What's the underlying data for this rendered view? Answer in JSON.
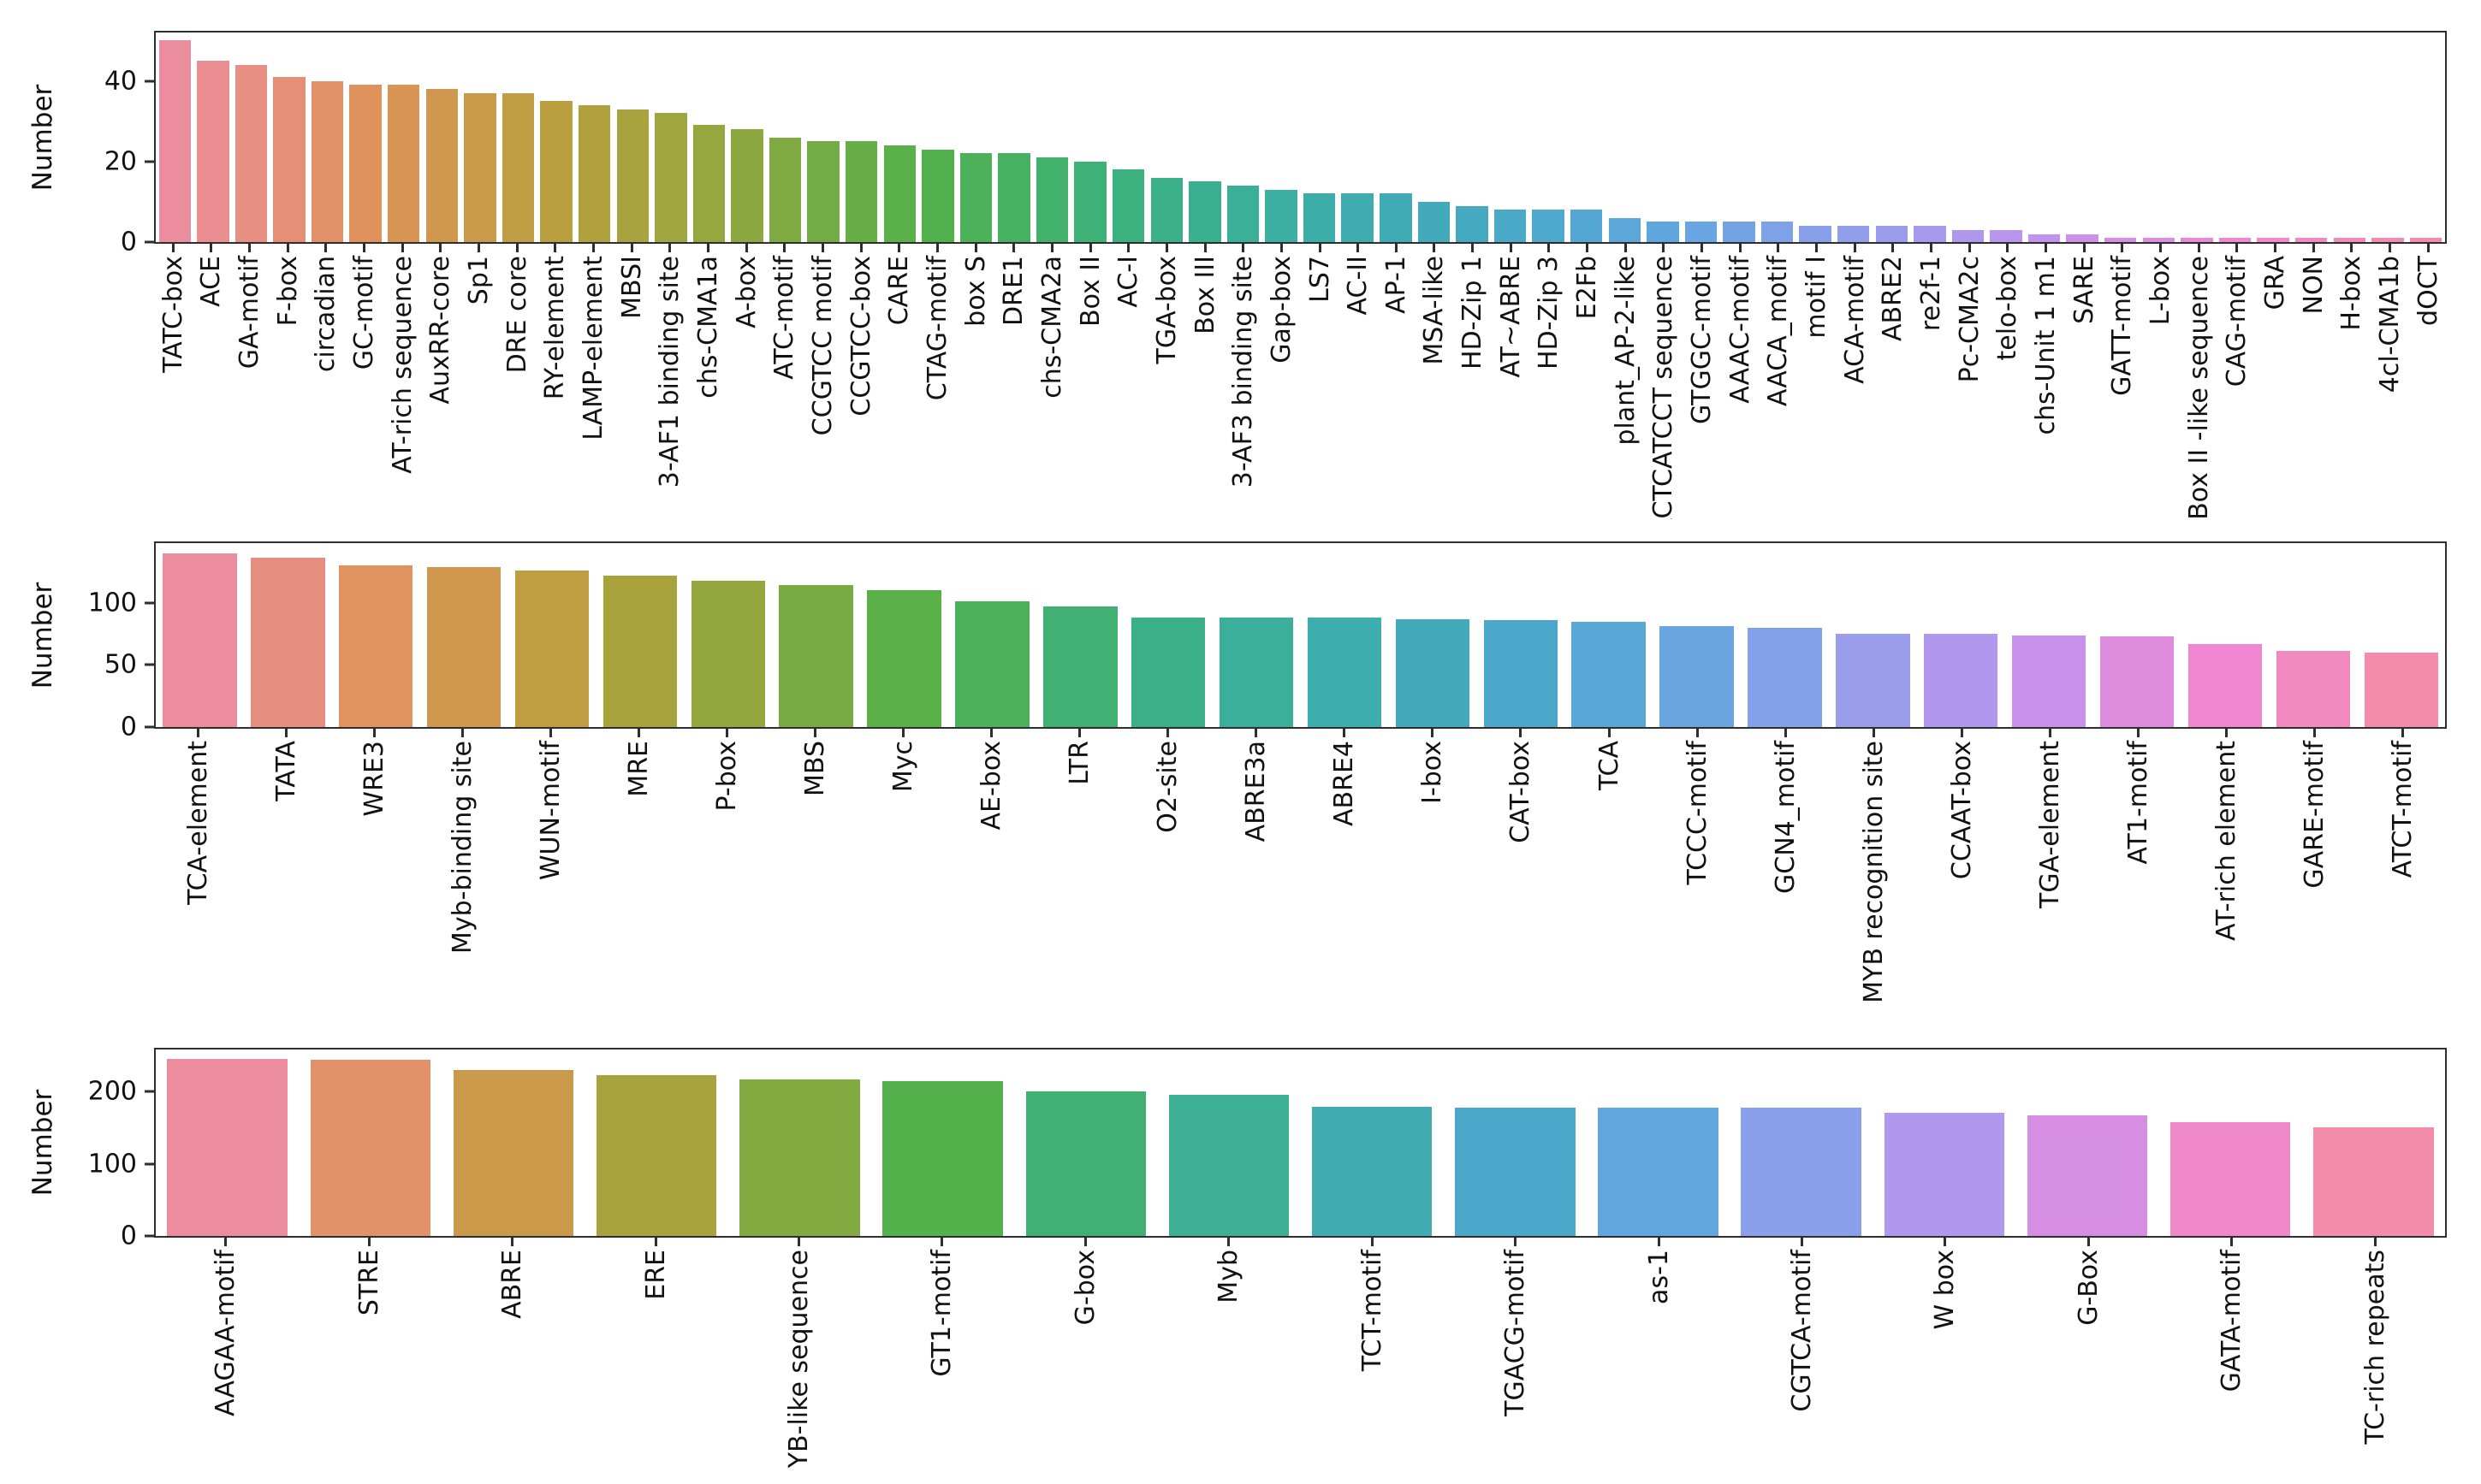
{
  "figure": {
    "background": "#ffffff",
    "frame_color": "#2e2e2e",
    "text_color": "#111111",
    "palette_anchors": [
      "#ec8d9e",
      "#e0925c",
      "#bb9f3e",
      "#8fa83f",
      "#52b14a",
      "#3bb17c",
      "#3caea6",
      "#46a9c4",
      "#62a6e0",
      "#949eec",
      "#c592ee",
      "#ef88d2",
      "#f38bab"
    ]
  },
  "chart_data": [
    {
      "type": "bar",
      "title": "",
      "xlabel": "",
      "ylabel": "Number",
      "ylim": [
        0,
        52
      ],
      "yticks": [
        0,
        20,
        40
      ],
      "grid": false,
      "legend": null,
      "categories": [
        "TATC-box",
        "ACE",
        "GA-motif",
        "F-box",
        "circadian",
        "GC-motif",
        "AT-rich sequence",
        "AuxRR-core",
        "Sp1",
        "DRE core",
        "RY-element",
        "LAMP-element",
        "MBSI",
        "3-AF1 binding site",
        "chs-CMA1a",
        "A-box",
        "ATC-motif",
        "CCGTCC motif",
        "CCGTCC-box",
        "CARE",
        "CTAG-motif",
        "box S",
        "DRE1",
        "chs-CMA2a",
        "Box II",
        "AC-I",
        "TGA-box",
        "Box III",
        "3-AF3 binding site",
        "Gap-box",
        "LS7",
        "AC-II",
        "AP-1",
        "MSA-like",
        "HD-Zip 1",
        "AT~ABRE",
        "HD-Zip 3",
        "E2Fb",
        "plant_AP-2-like",
        "ACTCATCCT sequence",
        "GTGGC-motif",
        "AAAC-motif",
        "AACA_motif",
        "motif I",
        "ACA-motif",
        "ABRE2",
        "re2f-1",
        "Pc-CMA2c",
        "telo-box",
        "chs-Unit 1 m1",
        "SARE",
        "GATT-motif",
        "L-box",
        "Box II -like sequence",
        "CAG-motif",
        "GRA",
        "NON",
        "H-box",
        "4cl-CMA1b",
        "dOCT"
      ],
      "values": [
        50,
        45,
        44,
        41,
        40,
        39,
        39,
        38,
        37,
        37,
        35,
        34,
        33,
        32,
        29,
        28,
        26,
        25,
        25,
        24,
        23,
        22,
        22,
        21,
        20,
        18,
        16,
        15,
        14,
        13,
        12,
        12,
        12,
        10,
        9,
        8,
        8,
        8,
        6,
        5,
        5,
        5,
        5,
        4,
        4,
        4,
        4,
        3,
        3,
        2,
        2,
        1,
        1,
        1,
        1,
        1,
        1,
        1,
        1,
        1
      ]
    },
    {
      "type": "bar",
      "title": "",
      "xlabel": "",
      "ylabel": "Number",
      "ylim": [
        0,
        148
      ],
      "yticks": [
        0,
        50,
        100
      ],
      "grid": false,
      "legend": null,
      "categories": [
        "TCA-element",
        "TATA",
        "WRE3",
        "Myb-binding site",
        "WUN-motif",
        "MRE",
        "P-box",
        "MBS",
        "Myc",
        "AE-box",
        "LTR",
        "O2-site",
        "ABRE3a",
        "ABRE4",
        "I-box",
        "CAT-box",
        "TCA",
        "TCCC-motif",
        "GCN4_motif",
        "MYB recognition site",
        "CCAAT-box",
        "TGA-element",
        "AT1-motif",
        "AT-rich element",
        "GARE-motif",
        "ATCT-motif"
      ],
      "values": [
        140,
        136,
        130,
        129,
        126,
        122,
        118,
        114,
        110,
        101,
        97,
        88,
        88,
        88,
        87,
        86,
        85,
        81,
        80,
        75,
        75,
        74,
        73,
        67,
        61,
        60
      ]
    },
    {
      "type": "bar",
      "title": "",
      "xlabel": "",
      "ylabel": "Number",
      "ylim": [
        0,
        258
      ],
      "yticks": [
        0,
        100,
        200
      ],
      "grid": false,
      "legend": null,
      "categories": [
        "AAGAA-motif",
        "STRE",
        "ABRE",
        "ERE",
        "YB-like sequence",
        "GT1-motif",
        "G-box",
        "Myb",
        "TCT-motif",
        "TGACG-motif",
        "as-1",
        "CGTCA-motif",
        "W box",
        "G-Box",
        "GATA-motif",
        "TC-rich repeats"
      ],
      "values": [
        245,
        244,
        230,
        222,
        217,
        214,
        200,
        195,
        179,
        178,
        178,
        177,
        170,
        167,
        158,
        150
      ]
    }
  ]
}
